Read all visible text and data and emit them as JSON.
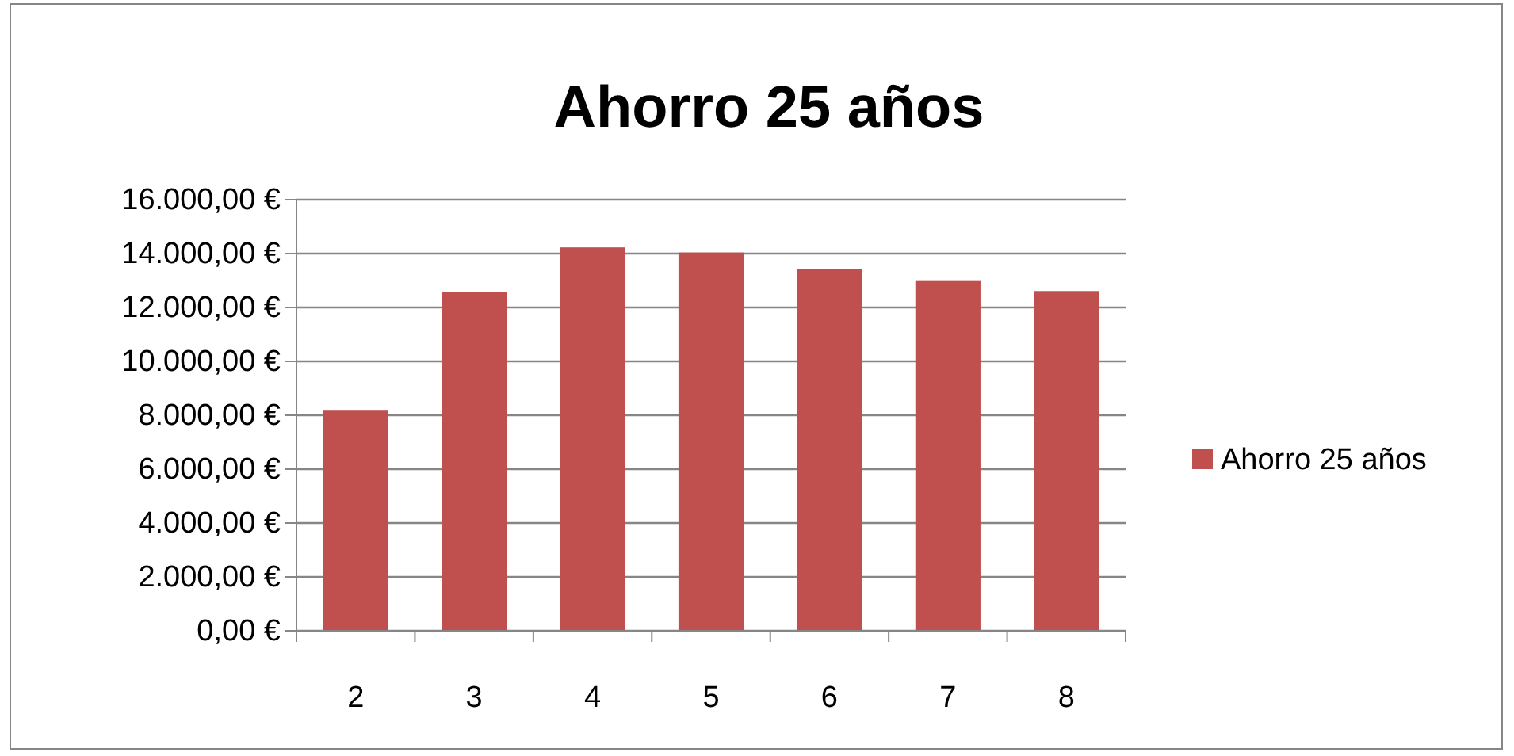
{
  "chart_data": {
    "type": "bar",
    "title": "Ahorro 25 años",
    "categories": [
      "2",
      "3",
      "4",
      "5",
      "6",
      "7",
      "8"
    ],
    "series": [
      {
        "name": "Ahorro 25 años",
        "color": "#c0504d",
        "values": [
          8170,
          12570,
          14230,
          14040,
          13440,
          13010,
          12610
        ]
      }
    ],
    "ylim": [
      0,
      16000
    ],
    "yticks": [
      {
        "value": 0,
        "label": "0,00 €"
      },
      {
        "value": 2000,
        "label": "2.000,00 €"
      },
      {
        "value": 4000,
        "label": "4.000,00 €"
      },
      {
        "value": 6000,
        "label": "6.000,00 €"
      },
      {
        "value": 8000,
        "label": "8.000,00 €"
      },
      {
        "value": 10000,
        "label": "10.000,00 €"
      },
      {
        "value": 12000,
        "label": "12.000,00 €"
      },
      {
        "value": 14000,
        "label": "14.000,00 €"
      },
      {
        "value": 16000,
        "label": "16.000,00 €"
      }
    ],
    "grid": "y",
    "legend": "right"
  }
}
